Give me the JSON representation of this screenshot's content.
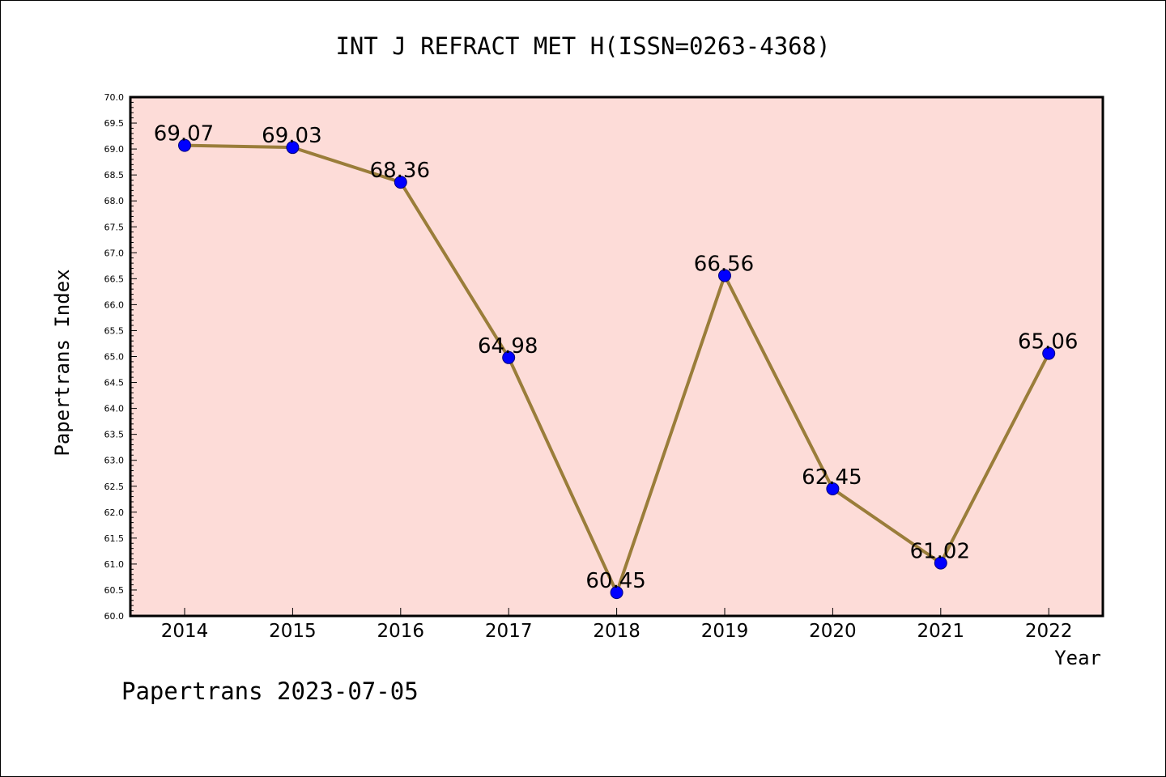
{
  "chart_data": {
    "type": "line",
    "title": "INT J REFRACT MET H(ISSN=0263-4368)",
    "xlabel": "Year",
    "ylabel": "Papertrans Index",
    "categories": [
      "2014",
      "2015",
      "2016",
      "2017",
      "2018",
      "2019",
      "2020",
      "2021",
      "2022"
    ],
    "series": [
      {
        "values": [
          69.07,
          69.03,
          68.36,
          64.98,
          60.45,
          66.56,
          62.45,
          61.02,
          65.06
        ],
        "labels": [
          "69.07",
          "69.03",
          "68.36",
          "64.98",
          "60.45",
          "66.56",
          "62.45",
          "61.02",
          "65.06"
        ]
      }
    ],
    "ylim": [
      60.0,
      70.0
    ],
    "yticks": [
      "60.0",
      "60.5",
      "61.0",
      "61.5",
      "62.0",
      "62.5",
      "63.0",
      "63.5",
      "64.0",
      "64.5",
      "65.0",
      "65.5",
      "66.0",
      "66.5",
      "67.0",
      "67.5",
      "68.0",
      "68.5",
      "69.0",
      "69.5",
      "70.0"
    ],
    "grid": false,
    "colors": {
      "plot_background": "#fddcd8",
      "line": "#9a7d3a",
      "marker": "#0000ff"
    }
  },
  "footer": "Papertrans 2023-07-05"
}
